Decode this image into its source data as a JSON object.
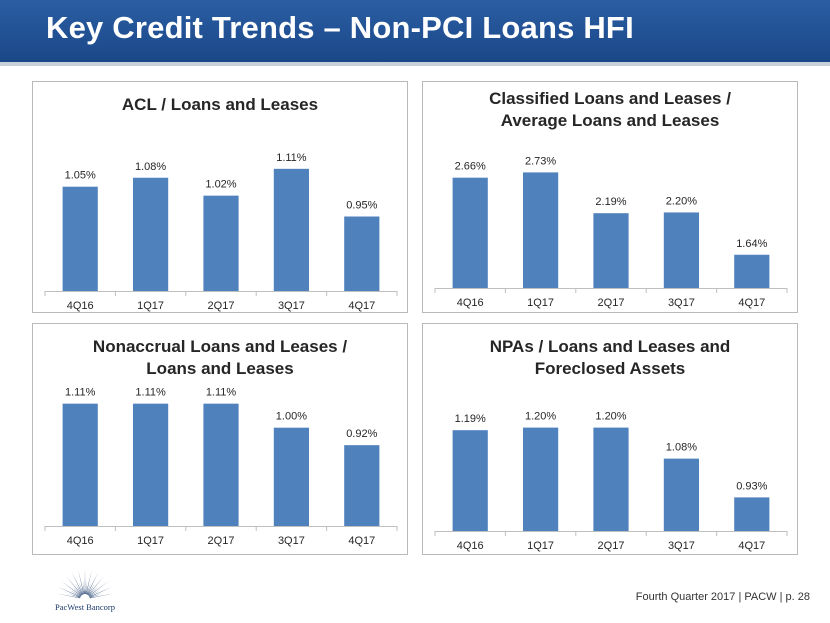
{
  "header": {
    "title": "Key Credit Trends – Non-PCI Loans HFI"
  },
  "colors": {
    "header": "#1f4e8c",
    "bar": "#4f81bd",
    "axis": "#bfbfbf",
    "text": "#262626"
  },
  "footer": {
    "text": "Fourth Quarter 2017 | PACW | p. 28",
    "logo_text": "PacWest Bancorp",
    "logo_icon": "starburst-icon"
  },
  "chart_data": [
    {
      "type": "bar",
      "title": "ACL / Loans and Leases",
      "categories": [
        "4Q16",
        "1Q17",
        "2Q17",
        "3Q17",
        "4Q17"
      ],
      "values": [
        1.05,
        1.08,
        1.02,
        1.11,
        0.95
      ],
      "labels": [
        "1.05%",
        "1.08%",
        "1.02%",
        "1.11%",
        "0.95%"
      ],
      "ylim": [
        0.7,
        1.2
      ],
      "grid": false
    },
    {
      "type": "bar",
      "title": "Classified Loans and Leases / Average Loans and Leases",
      "categories": [
        "4Q16",
        "1Q17",
        "2Q17",
        "3Q17",
        "4Q17"
      ],
      "values": [
        2.66,
        2.73,
        2.19,
        2.2,
        1.64
      ],
      "labels": [
        "2.66%",
        "2.73%",
        "2.19%",
        "2.20%",
        "1.64%"
      ],
      "ylim": [
        1.2,
        3.0
      ],
      "grid": false
    },
    {
      "type": "bar",
      "title": "Nonaccrual Loans and Leases / Loans and Leases",
      "categories": [
        "4Q16",
        "1Q17",
        "2Q17",
        "3Q17",
        "4Q17"
      ],
      "values": [
        1.11,
        1.11,
        1.11,
        1.0,
        0.92
      ],
      "labels": [
        "1.11%",
        "1.11%",
        "1.11%",
        "1.00%",
        "0.92%"
      ],
      "ylim": [
        0.55,
        1.2
      ],
      "grid": false
    },
    {
      "type": "bar",
      "title": "NPAs / Loans and Leases and Foreclosed Assets",
      "categories": [
        "4Q16",
        "1Q17",
        "2Q17",
        "3Q17",
        "4Q17"
      ],
      "values": [
        1.19,
        1.2,
        1.2,
        1.08,
        0.93
      ],
      "labels": [
        "1.19%",
        "1.20%",
        "1.20%",
        "1.08%",
        "0.93%"
      ],
      "ylim": [
        0.8,
        1.33
      ],
      "grid": false
    }
  ]
}
